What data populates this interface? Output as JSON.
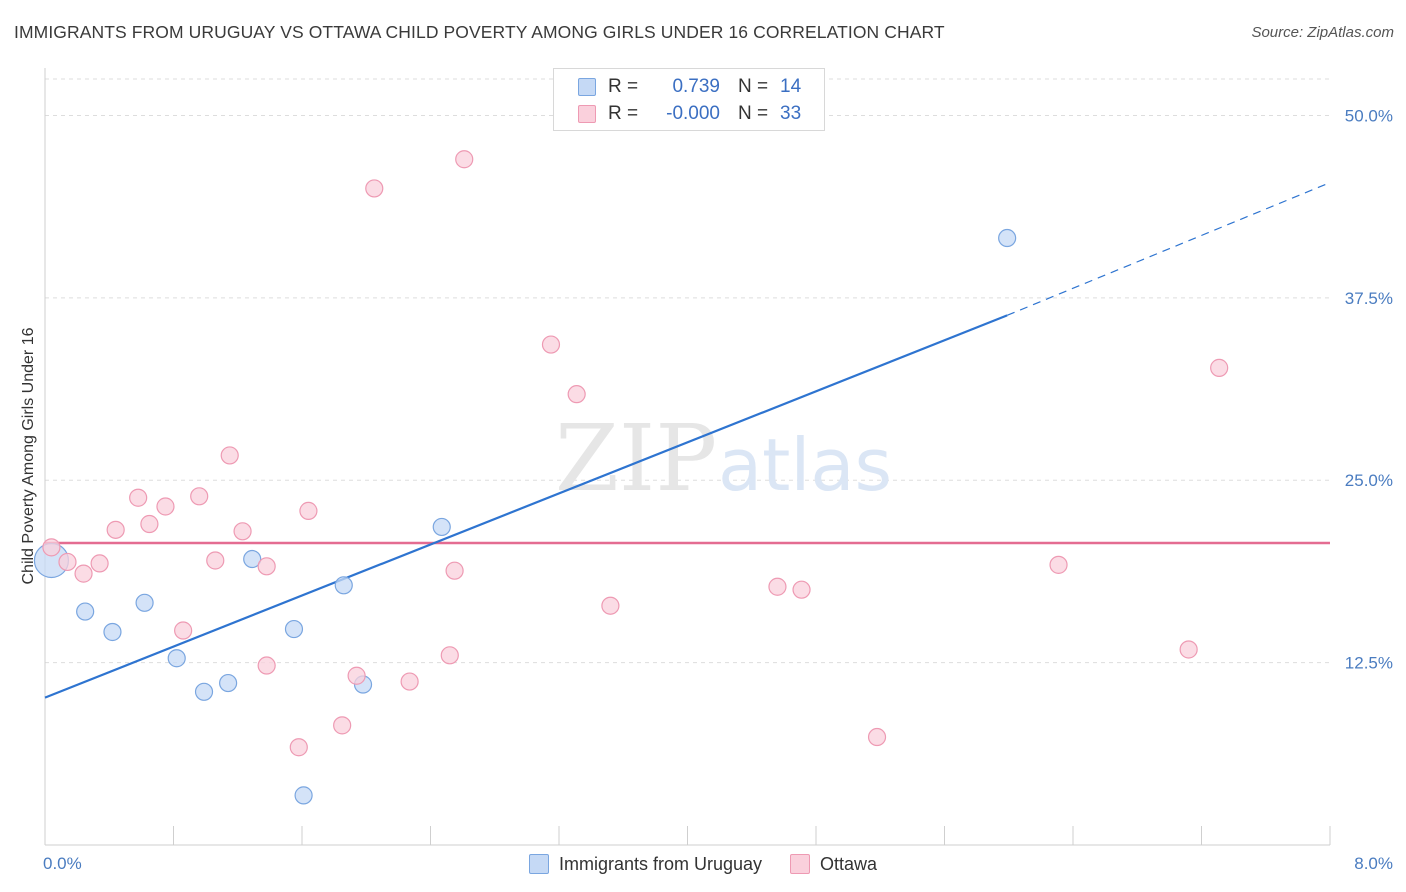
{
  "title": "IMMIGRANTS FROM URUGUAY VS OTTAWA CHILD POVERTY AMONG GIRLS UNDER 16 CORRELATION CHART",
  "source": "Source: ZipAtlas.com",
  "watermark": {
    "zip": "ZIP",
    "atlas": "atlas"
  },
  "colors": {
    "blue_fill": "#c5d9f5",
    "blue_stroke": "#7aa6e0",
    "blue_line": "#2e74d0",
    "pink_fill": "#fad0dc",
    "pink_stroke": "#ee9ab3",
    "pink_line": "#e46c91",
    "tick_text": "#4a7cc0",
    "grid": "#dddddd"
  },
  "legend": {
    "rows": [
      {
        "r_label": "R =",
        "r_value": "0.739",
        "n_label": "N =",
        "n_value": "14"
      },
      {
        "r_label": "R =",
        "r_value": "-0.000",
        "n_label": "N =",
        "n_value": "33"
      }
    ]
  },
  "bottom_legend": [
    "Immigrants from Uruguay",
    "Ottawa"
  ],
  "chart_data": {
    "type": "scatter",
    "ylabel": "Child Poverty Among Girls Under 16",
    "xlim": [
      0,
      8
    ],
    "ylim": [
      0,
      52.5
    ],
    "x_tick_labels": [
      "0.0%",
      "8.0%"
    ],
    "y_ticks": [
      12.5,
      25.0,
      37.5,
      50.0
    ],
    "y_tick_labels": [
      "12.5%",
      "25.0%",
      "37.5%",
      "50.0%"
    ],
    "grid": "horizontal dashed",
    "legend_placement": "top-center",
    "series": [
      {
        "name": "Immigrants from Uruguay",
        "color": "blue",
        "points": [
          {
            "x": 0.04,
            "y": 19.5,
            "size": "large"
          },
          {
            "x": 0.25,
            "y": 16.0
          },
          {
            "x": 0.42,
            "y": 14.6
          },
          {
            "x": 0.62,
            "y": 16.6
          },
          {
            "x": 0.82,
            "y": 12.8
          },
          {
            "x": 0.99,
            "y": 10.5
          },
          {
            "x": 1.14,
            "y": 11.1
          },
          {
            "x": 1.29,
            "y": 19.6
          },
          {
            "x": 1.55,
            "y": 14.8
          },
          {
            "x": 1.61,
            "y": 3.4
          },
          {
            "x": 1.86,
            "y": 17.8
          },
          {
            "x": 1.98,
            "y": 11.0
          },
          {
            "x": 2.47,
            "y": 21.8
          },
          {
            "x": 5.99,
            "y": 41.6
          }
        ],
        "trend": {
          "x0": 0.0,
          "y0": 10.1,
          "x1": 5.99,
          "y1": 36.3,
          "dashed_to_x": 8.0,
          "dashed_to_y": 45.4
        }
      },
      {
        "name": "Ottawa",
        "color": "pink",
        "points": [
          {
            "x": 0.04,
            "y": 20.4
          },
          {
            "x": 0.14,
            "y": 19.4
          },
          {
            "x": 0.24,
            "y": 18.6
          },
          {
            "x": 0.34,
            "y": 19.3
          },
          {
            "x": 0.44,
            "y": 21.6
          },
          {
            "x": 0.58,
            "y": 23.8
          },
          {
            "x": 0.65,
            "y": 22.0
          },
          {
            "x": 0.75,
            "y": 23.2
          },
          {
            "x": 0.86,
            "y": 14.7
          },
          {
            "x": 0.96,
            "y": 23.9
          },
          {
            "x": 1.06,
            "y": 19.5
          },
          {
            "x": 1.15,
            "y": 26.7
          },
          {
            "x": 1.23,
            "y": 21.5
          },
          {
            "x": 1.38,
            "y": 19.1
          },
          {
            "x": 1.38,
            "y": 12.3
          },
          {
            "x": 1.58,
            "y": 6.7
          },
          {
            "x": 1.64,
            "y": 22.9
          },
          {
            "x": 1.85,
            "y": 8.2
          },
          {
            "x": 1.94,
            "y": 11.6
          },
          {
            "x": 2.05,
            "y": 45.0
          },
          {
            "x": 2.27,
            "y": 11.2
          },
          {
            "x": 2.52,
            "y": 13.0
          },
          {
            "x": 2.55,
            "y": 18.8
          },
          {
            "x": 2.61,
            "y": 47.0
          },
          {
            "x": 3.15,
            "y": 34.3
          },
          {
            "x": 3.31,
            "y": 30.9
          },
          {
            "x": 3.52,
            "y": 16.4
          },
          {
            "x": 4.56,
            "y": 17.7
          },
          {
            "x": 4.71,
            "y": 17.5
          },
          {
            "x": 5.18,
            "y": 7.4
          },
          {
            "x": 6.31,
            "y": 19.2
          },
          {
            "x": 7.12,
            "y": 13.4
          },
          {
            "x": 7.31,
            "y": 32.7
          }
        ],
        "trend": {
          "x0": 0.0,
          "y0": 20.7,
          "x1": 8.0,
          "y1": 20.7
        }
      }
    ]
  }
}
